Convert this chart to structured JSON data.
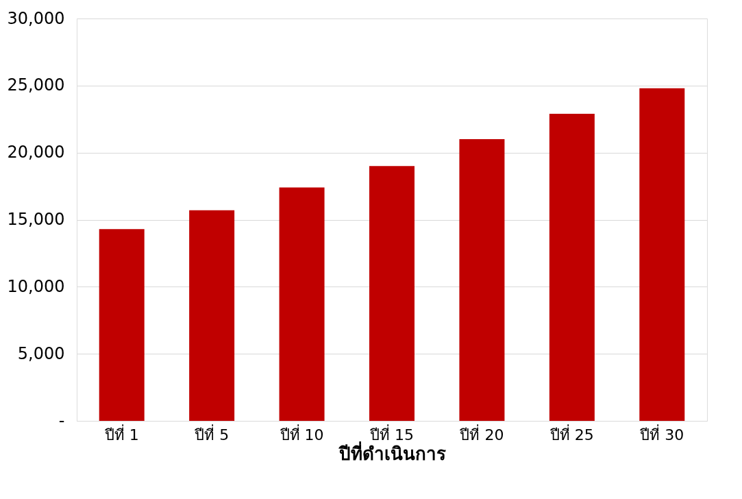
{
  "chart_data": {
    "type": "bar",
    "xlabel": "ปีที่ดำเนินการ",
    "categories": [
      "ปีที่ 1",
      "ปีที่ 5",
      "ปีที่ 10",
      "ปีที่ 15",
      "ปีที่ 20",
      "ปีที่ 25",
      "ปีที่ 30"
    ],
    "values": [
      14300,
      15700,
      17400,
      19000,
      21000,
      22900,
      24800
    ],
    "color": "#c00000",
    "ylim": [
      0,
      30000
    ],
    "yticks": [
      {
        "value": 0,
        "label": "-"
      },
      {
        "value": 5000,
        "label": "5,000"
      },
      {
        "value": 10000,
        "label": "10,000"
      },
      {
        "value": 15000,
        "label": "15,000"
      },
      {
        "value": 20000,
        "label": "20,000"
      },
      {
        "value": 25000,
        "label": "25,000"
      },
      {
        "value": 30000,
        "label": "30,000"
      }
    ],
    "grid": "y"
  }
}
